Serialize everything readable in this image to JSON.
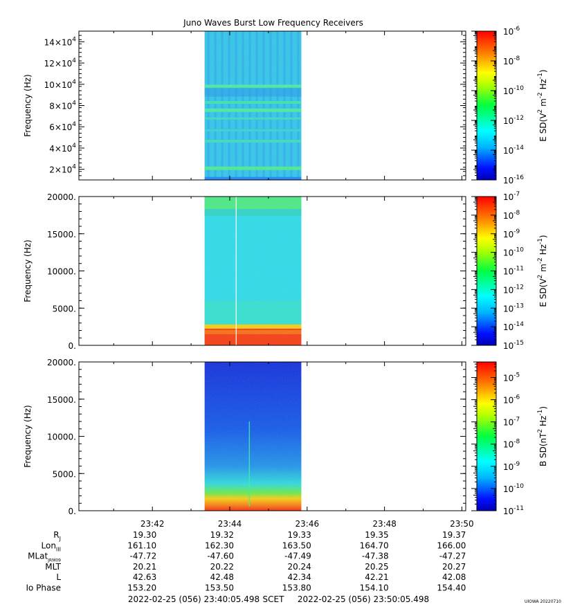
{
  "chart_data": {
    "type": "heatmap",
    "title": "Juno Waves Burst Low Frequency Receivers",
    "x_axis": {
      "range": [
        "23:40:05.498",
        "23:50:05.498"
      ],
      "ticks": [
        "23:42",
        "23:44",
        "23:46",
        "23:48",
        "23:50"
      ],
      "tick_minutes": [
        1.9,
        3.9,
        5.9,
        7.9,
        9.9
      ],
      "data_span_minutes": [
        3.25,
        5.75
      ]
    },
    "panels": [
      {
        "ylabel": "Frequency (Hz)",
        "yrange": [
          10000,
          150000
        ],
        "yticks": [
          {
            "value": 20000,
            "base": "2×10",
            "exp": "4"
          },
          {
            "value": 40000,
            "base": "4×10",
            "exp": "4"
          },
          {
            "value": 60000,
            "base": "6×10",
            "exp": "4"
          },
          {
            "value": 80000,
            "base": "8×10",
            "exp": "4"
          },
          {
            "value": 100000,
            "base": "10×10",
            "exp": "4"
          },
          {
            "value": 120000,
            "base": "12×10",
            "exp": "4"
          },
          {
            "value": 140000,
            "base": "14×10",
            "exp": "4"
          }
        ],
        "colorbar": {
          "label_parts": [
            "E SD(V",
            "2",
            " m",
            "-2",
            " Hz",
            "-1",
            ")"
          ],
          "log_range": [
            -16,
            -6
          ],
          "ticks": [
            {
              "base": "10",
              "exp": "-6"
            },
            {
              "base": "10",
              "exp": "-8"
            },
            {
              "base": "10",
              "exp": "-10"
            },
            {
              "base": "10",
              "exp": "-12"
            },
            {
              "base": "10",
              "exp": "-14"
            },
            {
              "base": "10",
              "exp": "-16"
            }
          ]
        }
      },
      {
        "ylabel": "Frequency (Hz)",
        "yrange": [
          0,
          20000
        ],
        "yticks": [
          {
            "value": 0,
            "label": "0."
          },
          {
            "value": 5000,
            "label": "5000."
          },
          {
            "value": 10000,
            "label": "10000."
          },
          {
            "value": 15000,
            "label": "15000."
          },
          {
            "value": 20000,
            "label": "20000."
          }
        ],
        "colorbar": {
          "label_parts": [
            "E SD(V",
            "2",
            " m",
            "-2",
            " Hz",
            "-1",
            ")"
          ],
          "log_range": [
            -15,
            -7
          ],
          "ticks": [
            {
              "base": "10",
              "exp": "-7"
            },
            {
              "base": "10",
              "exp": "-8"
            },
            {
              "base": "10",
              "exp": "-9"
            },
            {
              "base": "10",
              "exp": "-10"
            },
            {
              "base": "10",
              "exp": "-11"
            },
            {
              "base": "10",
              "exp": "-12"
            },
            {
              "base": "10",
              "exp": "-13"
            },
            {
              "base": "10",
              "exp": "-14"
            },
            {
              "base": "10",
              "exp": "-15"
            }
          ]
        }
      },
      {
        "ylabel": "Frequency (Hz)",
        "yrange": [
          0,
          20000
        ],
        "yticks": [
          {
            "value": 0,
            "label": "0."
          },
          {
            "value": 5000,
            "label": "5000."
          },
          {
            "value": 10000,
            "label": "10000."
          },
          {
            "value": 15000,
            "label": "15000."
          },
          {
            "value": 20000,
            "label": "20000."
          }
        ],
        "colorbar": {
          "label_parts": [
            "B SD(nT",
            "2",
            " Hz",
            "-1",
            ")"
          ],
          "log_range": [
            -11,
            -4.3
          ],
          "ticks": [
            {
              "base": "10",
              "exp": "-5"
            },
            {
              "base": "10",
              "exp": "-6"
            },
            {
              "base": "10",
              "exp": "-7"
            },
            {
              "base": "10",
              "exp": "-8"
            },
            {
              "base": "10",
              "exp": "-9"
            },
            {
              "base": "10",
              "exp": "-10"
            },
            {
              "base": "10",
              "exp": "-11"
            }
          ]
        }
      }
    ],
    "ephemeris": [
      {
        "label": "R",
        "sub": "J",
        "values": [
          "19.30",
          "19.32",
          "19.33",
          "19.35",
          "19.37"
        ]
      },
      {
        "label": "Lon",
        "sub": "III",
        "values": [
          "161.10",
          "162.30",
          "163.50",
          "164.70",
          "166.00"
        ]
      },
      {
        "label": "MLat",
        "sub": "JRM09",
        "values": [
          "-47.72",
          "-47.60",
          "-47.49",
          "-47.38",
          "-47.27"
        ]
      },
      {
        "label": "MLT",
        "sub": "",
        "values": [
          "20.21",
          "20.22",
          "20.24",
          "20.25",
          "20.27"
        ]
      },
      {
        "label": "L",
        "sub": "",
        "values": [
          "42.63",
          "42.48",
          "42.34",
          "42.21",
          "42.08"
        ]
      },
      {
        "label": "Io Phase",
        "sub": "",
        "values": [
          "153.20",
          "153.50",
          "153.80",
          "154.10",
          "154.40"
        ]
      }
    ],
    "footer": {
      "start": "2022-02-25 (056) 23:40:05.498",
      "center": "SCET",
      "end": "2022-02-25 (056) 23:50:05.498"
    }
  },
  "credit": "UIOWA 20220710"
}
